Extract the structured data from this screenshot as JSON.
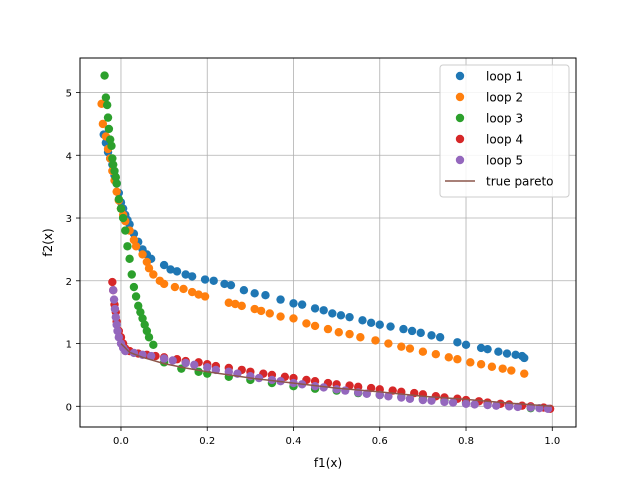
{
  "chart_data": {
    "type": "scatter",
    "title": "",
    "xlabel": "f1(x)",
    "ylabel": "f2(x)",
    "xlim": [
      -0.095,
      1.055
    ],
    "ylim": [
      -0.33,
      5.55
    ],
    "xticks": [
      0.0,
      0.2,
      0.4,
      0.6,
      0.8,
      1.0
    ],
    "xtick_labels": [
      "0.0",
      "0.2",
      "0.4",
      "0.6",
      "0.8",
      "1.0"
    ],
    "yticks": [
      0,
      1,
      2,
      3,
      4,
      5
    ],
    "ytick_labels": [
      "0",
      "1",
      "2",
      "3",
      "4",
      "5"
    ],
    "grid": true,
    "legend_position": "top-right",
    "series": [
      {
        "name": "loop 1",
        "kind": "scatter",
        "color": "#1f77b4",
        "points": [
          [
            -0.04,
            4.33
          ],
          [
            -0.035,
            4.2
          ],
          [
            -0.03,
            4.05
          ],
          [
            -0.025,
            3.95
          ],
          [
            -0.02,
            3.85
          ],
          [
            -0.015,
            3.68
          ],
          [
            -0.01,
            3.55
          ],
          [
            -0.005,
            3.4
          ],
          [
            0.0,
            3.25
          ],
          [
            0.005,
            3.15
          ],
          [
            0.01,
            3.05
          ],
          [
            0.015,
            2.97
          ],
          [
            0.02,
            2.9
          ],
          [
            0.03,
            2.75
          ],
          [
            0.04,
            2.62
          ],
          [
            0.05,
            2.5
          ],
          [
            0.06,
            2.42
          ],
          [
            0.07,
            2.35
          ],
          [
            0.1,
            2.25
          ],
          [
            0.115,
            2.18
          ],
          [
            0.13,
            2.15
          ],
          [
            0.15,
            2.1
          ],
          [
            0.165,
            2.07
          ],
          [
            0.195,
            2.02
          ],
          [
            0.215,
            2.0
          ],
          [
            0.24,
            1.95
          ],
          [
            0.255,
            1.93
          ],
          [
            0.285,
            1.85
          ],
          [
            0.31,
            1.8
          ],
          [
            0.335,
            1.77
          ],
          [
            0.37,
            1.7
          ],
          [
            0.4,
            1.64
          ],
          [
            0.42,
            1.62
          ],
          [
            0.45,
            1.56
          ],
          [
            0.47,
            1.53
          ],
          [
            0.49,
            1.48
          ],
          [
            0.51,
            1.45
          ],
          [
            0.53,
            1.42
          ],
          [
            0.56,
            1.37
          ],
          [
            0.58,
            1.33
          ],
          [
            0.6,
            1.3
          ],
          [
            0.625,
            1.27
          ],
          [
            0.655,
            1.23
          ],
          [
            0.675,
            1.2
          ],
          [
            0.695,
            1.17
          ],
          [
            0.72,
            1.13
          ],
          [
            0.74,
            1.1
          ],
          [
            0.78,
            1.02
          ],
          [
            0.8,
            0.98
          ],
          [
            0.835,
            0.93
          ],
          [
            0.85,
            0.91
          ],
          [
            0.875,
            0.87
          ],
          [
            0.895,
            0.84
          ],
          [
            0.915,
            0.82
          ],
          [
            0.93,
            0.8
          ],
          [
            0.935,
            0.77
          ]
        ]
      },
      {
        "name": "loop 2",
        "kind": "scatter",
        "color": "#ff7f0e",
        "points": [
          [
            -0.045,
            4.82
          ],
          [
            -0.042,
            4.5
          ],
          [
            -0.035,
            4.3
          ],
          [
            -0.03,
            4.1
          ],
          [
            -0.025,
            3.95
          ],
          [
            -0.02,
            3.75
          ],
          [
            -0.015,
            3.6
          ],
          [
            -0.01,
            3.42
          ],
          [
            -0.005,
            3.28
          ],
          [
            0.0,
            3.15
          ],
          [
            0.005,
            3.05
          ],
          [
            0.01,
            2.95
          ],
          [
            0.02,
            2.8
          ],
          [
            0.03,
            2.65
          ],
          [
            0.035,
            2.55
          ],
          [
            0.05,
            2.42
          ],
          [
            0.06,
            2.3
          ],
          [
            0.065,
            2.2
          ],
          [
            0.075,
            2.1
          ],
          [
            0.09,
            2.0
          ],
          [
            0.1,
            1.95
          ],
          [
            0.125,
            1.9
          ],
          [
            0.145,
            1.87
          ],
          [
            0.165,
            1.82
          ],
          [
            0.18,
            1.78
          ],
          [
            0.195,
            1.75
          ],
          [
            0.25,
            1.65
          ],
          [
            0.265,
            1.63
          ],
          [
            0.28,
            1.6
          ],
          [
            0.31,
            1.55
          ],
          [
            0.325,
            1.52
          ],
          [
            0.345,
            1.48
          ],
          [
            0.37,
            1.43
          ],
          [
            0.4,
            1.4
          ],
          [
            0.43,
            1.32
          ],
          [
            0.45,
            1.28
          ],
          [
            0.48,
            1.23
          ],
          [
            0.505,
            1.18
          ],
          [
            0.53,
            1.15
          ],
          [
            0.555,
            1.1
          ],
          [
            0.59,
            1.05
          ],
          [
            0.62,
            1.0
          ],
          [
            0.65,
            0.95
          ],
          [
            0.67,
            0.92
          ],
          [
            0.7,
            0.87
          ],
          [
            0.73,
            0.83
          ],
          [
            0.76,
            0.78
          ],
          [
            0.78,
            0.75
          ],
          [
            0.81,
            0.7
          ],
          [
            0.835,
            0.67
          ],
          [
            0.86,
            0.63
          ],
          [
            0.885,
            0.6
          ],
          [
            0.905,
            0.57
          ],
          [
            0.935,
            0.52
          ]
        ]
      },
      {
        "name": "loop 3",
        "kind": "scatter",
        "color": "#2ca02c",
        "points": [
          [
            -0.038,
            5.27
          ],
          [
            -0.035,
            4.92
          ],
          [
            -0.032,
            4.8
          ],
          [
            -0.03,
            4.6
          ],
          [
            -0.028,
            4.42
          ],
          [
            -0.025,
            4.25
          ],
          [
            -0.022,
            4.15
          ],
          [
            -0.02,
            3.95
          ],
          [
            -0.018,
            3.85
          ],
          [
            -0.015,
            3.75
          ],
          [
            -0.012,
            3.65
          ],
          [
            -0.01,
            3.55
          ],
          [
            -0.005,
            3.3
          ],
          [
            0.0,
            3.15
          ],
          [
            0.005,
            3.0
          ],
          [
            0.01,
            2.8
          ],
          [
            0.015,
            2.55
          ],
          [
            0.02,
            2.35
          ],
          [
            0.025,
            2.1
          ],
          [
            0.03,
            1.9
          ],
          [
            0.035,
            1.75
          ],
          [
            0.04,
            1.6
          ],
          [
            0.045,
            1.5
          ],
          [
            0.05,
            1.4
          ],
          [
            0.055,
            1.3
          ],
          [
            0.06,
            1.2
          ],
          [
            0.065,
            1.1
          ],
          [
            0.075,
            0.98
          ],
          [
            0.1,
            0.7
          ],
          [
            0.14,
            0.6
          ],
          [
            0.18,
            0.55
          ],
          [
            0.2,
            0.52
          ],
          [
            0.25,
            0.47
          ],
          [
            0.3,
            0.42
          ],
          [
            0.35,
            0.37
          ],
          [
            0.4,
            0.32
          ],
          [
            0.45,
            0.28
          ],
          [
            0.5,
            0.25
          ],
          [
            0.55,
            0.21
          ],
          [
            0.6,
            0.18
          ],
          [
            0.65,
            0.15
          ],
          [
            0.7,
            0.12
          ],
          [
            0.75,
            0.09
          ],
          [
            0.8,
            0.06
          ],
          [
            0.85,
            0.04
          ],
          [
            0.9,
            0.02
          ],
          [
            0.95,
            -0.03
          ]
        ]
      },
      {
        "name": "loop 4",
        "kind": "scatter",
        "color": "#d62728",
        "points": [
          [
            -0.02,
            1.98
          ],
          [
            -0.018,
            1.85
          ],
          [
            -0.015,
            1.62
          ],
          [
            -0.012,
            1.5
          ],
          [
            -0.01,
            1.35
          ],
          [
            -0.005,
            1.2
          ],
          [
            0.0,
            1.1
          ],
          [
            0.005,
            1.0
          ],
          [
            0.01,
            0.92
          ],
          [
            0.02,
            0.88
          ],
          [
            0.04,
            0.84
          ],
          [
            0.06,
            0.82
          ],
          [
            0.08,
            0.8
          ],
          [
            0.1,
            0.78
          ],
          [
            0.13,
            0.75
          ],
          [
            0.15,
            0.72
          ],
          [
            0.18,
            0.7
          ],
          [
            0.2,
            0.67
          ],
          [
            0.22,
            0.64
          ],
          [
            0.25,
            0.61
          ],
          [
            0.28,
            0.58
          ],
          [
            0.3,
            0.55
          ],
          [
            0.33,
            0.52
          ],
          [
            0.35,
            0.5
          ],
          [
            0.38,
            0.47
          ],
          [
            0.4,
            0.45
          ],
          [
            0.43,
            0.42
          ],
          [
            0.45,
            0.4
          ],
          [
            0.48,
            0.37
          ],
          [
            0.5,
            0.35
          ],
          [
            0.53,
            0.33
          ],
          [
            0.55,
            0.31
          ],
          [
            0.58,
            0.29
          ],
          [
            0.6,
            0.27
          ],
          [
            0.63,
            0.25
          ],
          [
            0.65,
            0.23
          ],
          [
            0.68,
            0.21
          ],
          [
            0.7,
            0.19
          ],
          [
            0.73,
            0.16
          ],
          [
            0.75,
            0.14
          ],
          [
            0.78,
            0.12
          ],
          [
            0.8,
            0.1
          ],
          [
            0.83,
            0.08
          ],
          [
            0.85,
            0.06
          ],
          [
            0.88,
            0.04
          ],
          [
            0.9,
            0.03
          ],
          [
            0.93,
            0.01
          ],
          [
            0.95,
            0.0
          ],
          [
            0.98,
            -0.02
          ],
          [
            0.995,
            -0.04
          ]
        ]
      },
      {
        "name": "loop 5",
        "kind": "scatter",
        "color": "#9467bd",
        "points": [
          [
            -0.018,
            1.85
          ],
          [
            -0.016,
            1.7
          ],
          [
            -0.014,
            1.55
          ],
          [
            -0.012,
            1.42
          ],
          [
            -0.01,
            1.3
          ],
          [
            -0.008,
            1.2
          ],
          [
            -0.005,
            1.1
          ],
          [
            0.0,
            1.0
          ],
          [
            0.005,
            0.93
          ],
          [
            0.01,
            0.88
          ],
          [
            0.03,
            0.85
          ],
          [
            0.05,
            0.82
          ],
          [
            0.07,
            0.8
          ],
          [
            0.1,
            0.76
          ],
          [
            0.12,
            0.73
          ],
          [
            0.15,
            0.69
          ],
          [
            0.17,
            0.66
          ],
          [
            0.2,
            0.62
          ],
          [
            0.22,
            0.58
          ],
          [
            0.25,
            0.55
          ],
          [
            0.27,
            0.52
          ],
          [
            0.3,
            0.48
          ],
          [
            0.32,
            0.45
          ],
          [
            0.35,
            0.42
          ],
          [
            0.37,
            0.4
          ],
          [
            0.4,
            0.37
          ],
          [
            0.42,
            0.35
          ],
          [
            0.45,
            0.32
          ],
          [
            0.47,
            0.3
          ],
          [
            0.5,
            0.27
          ],
          [
            0.52,
            0.25
          ],
          [
            0.55,
            0.22
          ],
          [
            0.57,
            0.2
          ],
          [
            0.6,
            0.18
          ],
          [
            0.62,
            0.16
          ],
          [
            0.65,
            0.14
          ],
          [
            0.67,
            0.12
          ],
          [
            0.7,
            0.1
          ],
          [
            0.72,
            0.09
          ],
          [
            0.75,
            0.07
          ],
          [
            0.77,
            0.06
          ],
          [
            0.8,
            0.04
          ],
          [
            0.82,
            0.03
          ],
          [
            0.85,
            0.02
          ],
          [
            0.87,
            0.01
          ],
          [
            0.9,
            0.0
          ],
          [
            0.92,
            -0.01
          ],
          [
            0.95,
            -0.02
          ],
          [
            0.97,
            -0.03
          ],
          [
            0.99,
            -0.04
          ]
        ]
      },
      {
        "name": "true pareto",
        "kind": "line",
        "color": "#8c564b",
        "points": [
          [
            0.0,
            1.0
          ],
          [
            0.02,
            0.86
          ],
          [
            0.05,
            0.78
          ],
          [
            0.1,
            0.68
          ],
          [
            0.15,
            0.61
          ],
          [
            0.2,
            0.55
          ],
          [
            0.3,
            0.45
          ],
          [
            0.4,
            0.37
          ],
          [
            0.5,
            0.29
          ],
          [
            0.6,
            0.23
          ],
          [
            0.7,
            0.16
          ],
          [
            0.8,
            0.11
          ],
          [
            0.9,
            0.05
          ],
          [
            1.0,
            0.0
          ]
        ]
      }
    ]
  }
}
